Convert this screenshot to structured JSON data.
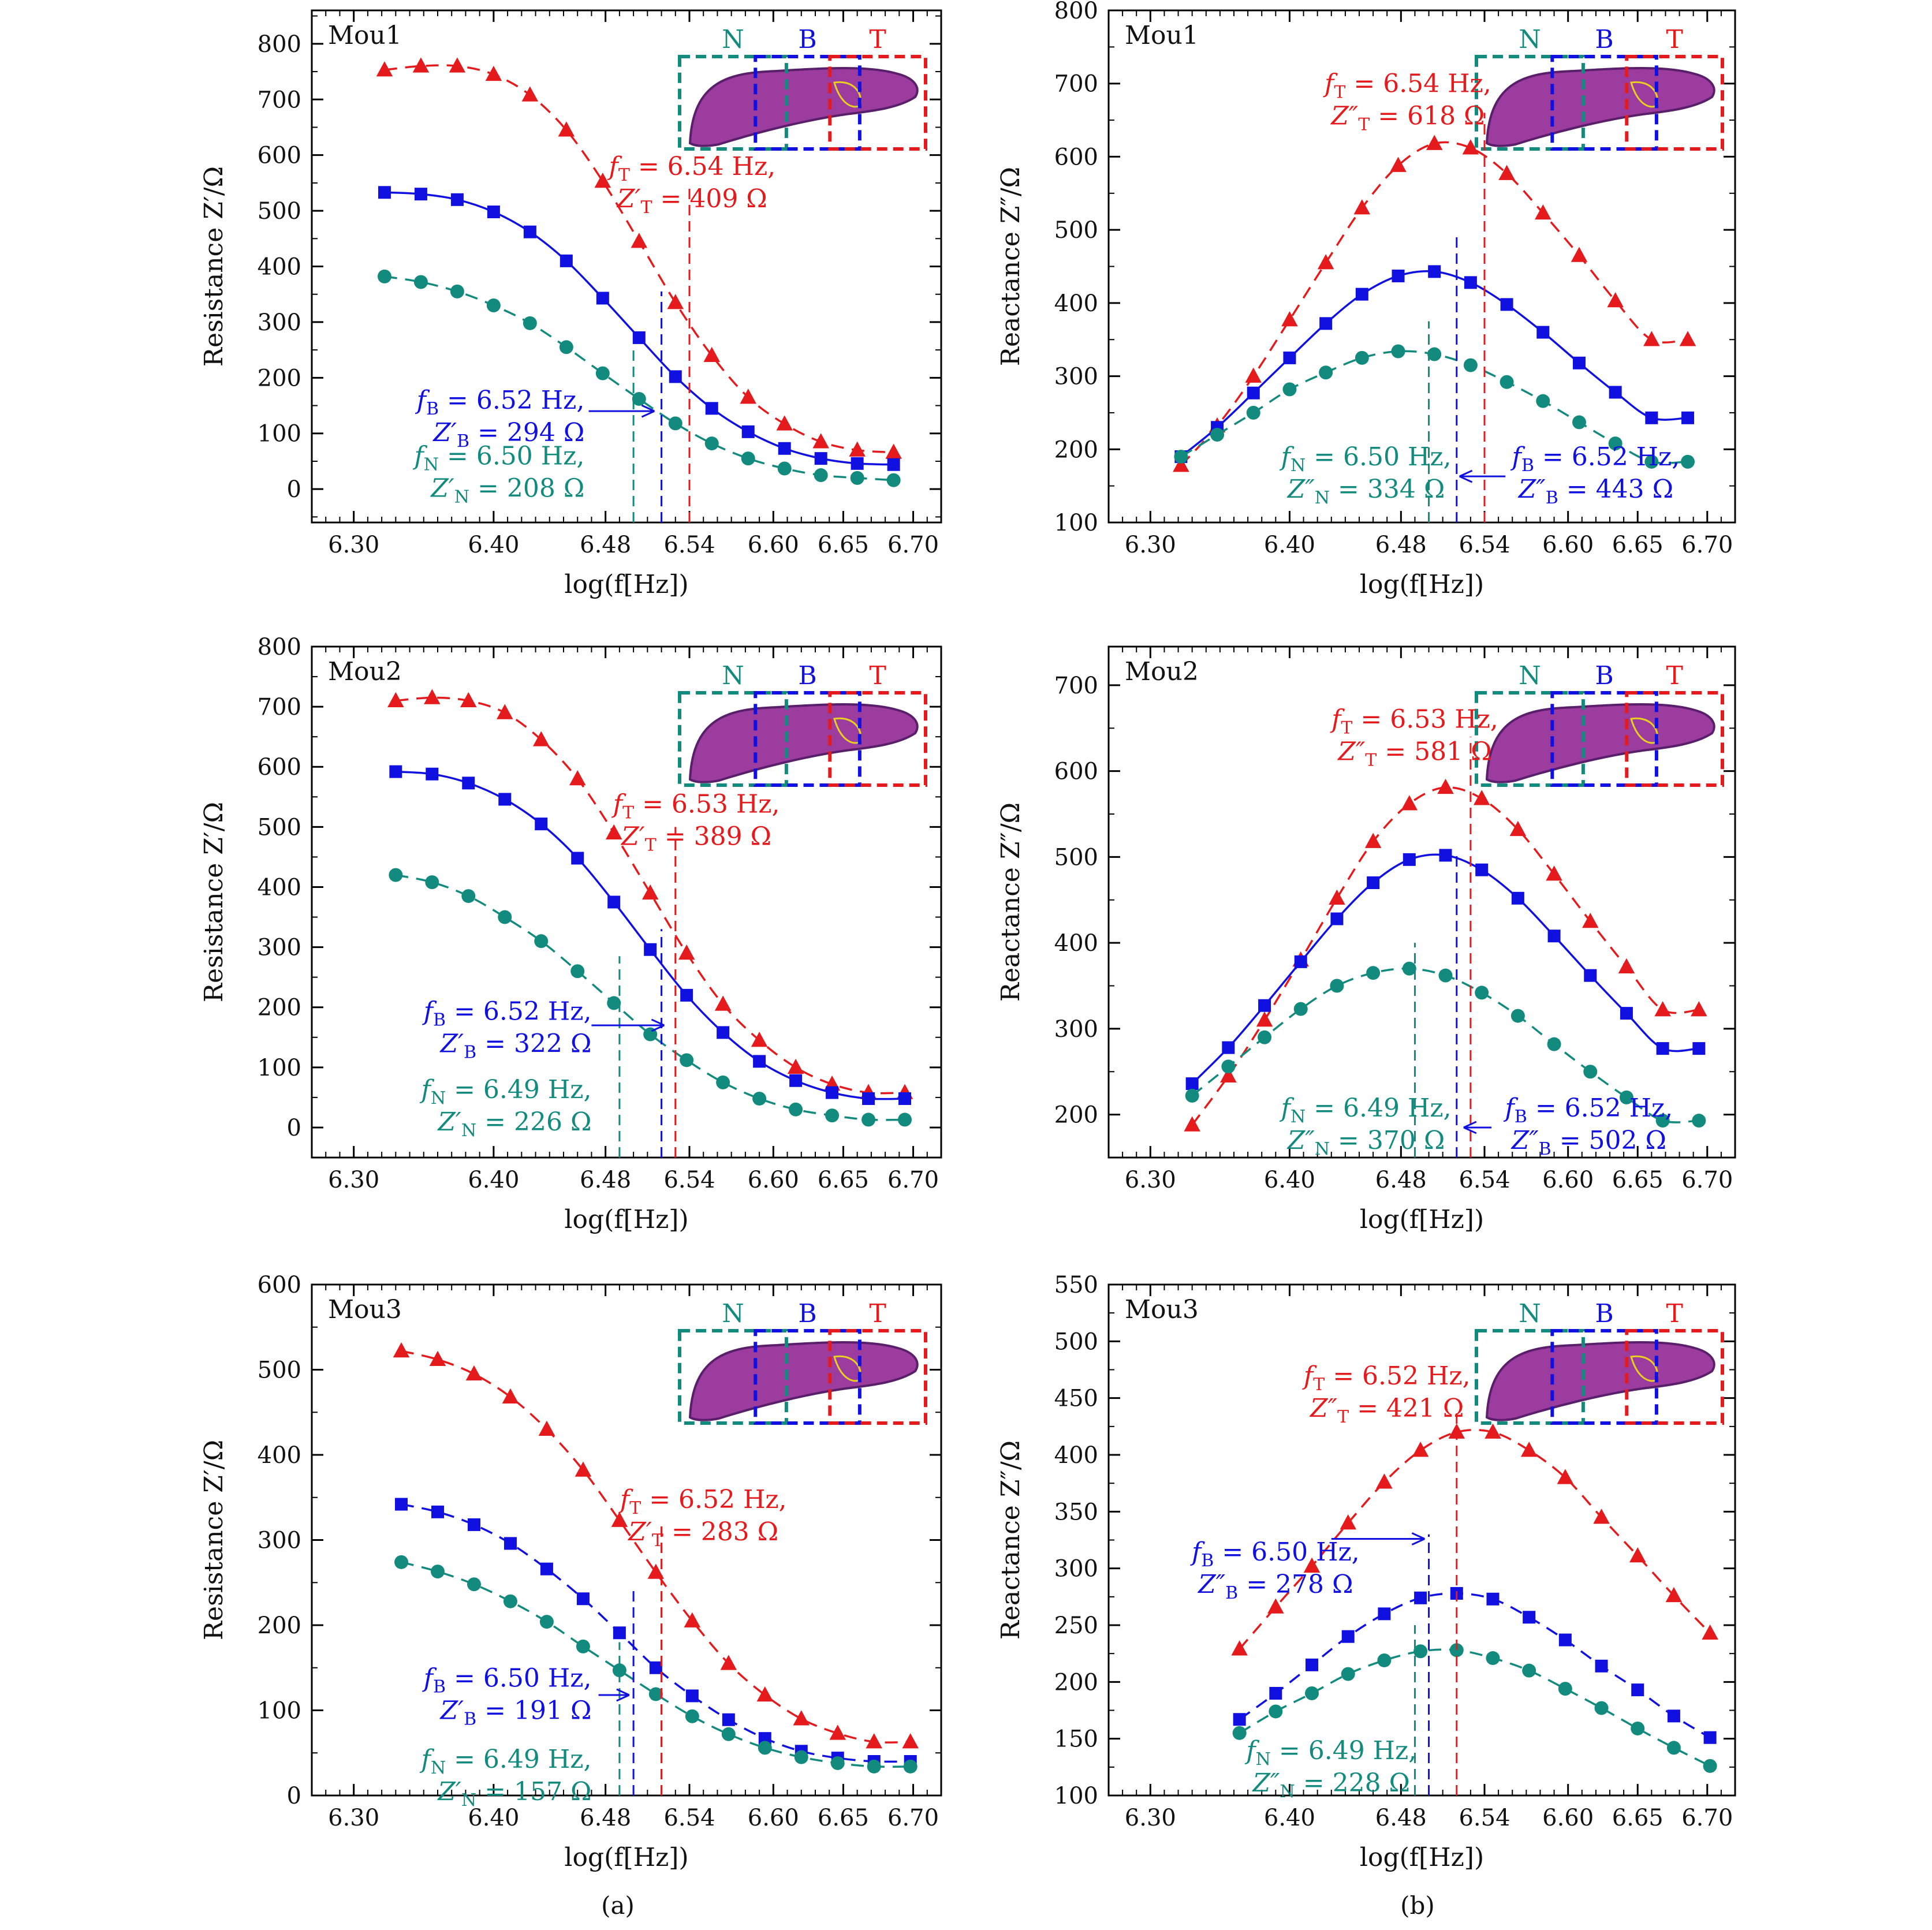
{
  "colors": {
    "T": "#e41a1c",
    "B": "#1010e0",
    "N": "#138a7e",
    "axis": "#000000"
  },
  "sub_captions": [
    "(a)",
    "(b)"
  ],
  "inset": {
    "letters": [
      "N",
      "B",
      "T"
    ],
    "tissue_color": "#9b3c9e",
    "tissue_edge": "#5a1f6a",
    "tumor_outline": "#e8d020"
  },
  "chart_data": [
    {
      "type": "line",
      "panel": "Mou1",
      "column": "a",
      "xlabel": "log(f[Hz])",
      "ylabel": "Resistance Z′/Ω",
      "xlim": [
        6.27,
        6.72
      ],
      "ylim": [
        -60,
        860
      ],
      "xticks": [
        "6.30",
        "6.40",
        "6.48",
        "6.54",
        "6.60",
        "6.65",
        "6.70"
      ],
      "xtick_values": [
        6.3,
        6.4,
        6.48,
        6.54,
        6.6,
        6.65,
        6.7
      ],
      "yticks": [
        0,
        100,
        200,
        300,
        400,
        500,
        600,
        700,
        800
      ],
      "x": [
        6.322,
        6.348,
        6.374,
        6.4,
        6.426,
        6.452,
        6.478,
        6.504,
        6.53,
        6.556,
        6.582,
        6.608,
        6.634,
        6.66,
        6.686
      ],
      "series": [
        {
          "key": "T",
          "marker": "triangle",
          "values": [
            753,
            760,
            760,
            745,
            708,
            645,
            553,
            445,
            335,
            240,
            165,
            117,
            85,
            70,
            66
          ]
        },
        {
          "key": "B",
          "marker": "square",
          "values": [
            533,
            530,
            520,
            498,
            462,
            410,
            343,
            272,
            202,
            145,
            103,
            73,
            55,
            46,
            44
          ]
        },
        {
          "key": "N",
          "marker": "circle",
          "values": [
            382,
            372,
            355,
            330,
            298,
            255,
            208,
            162,
            118,
            82,
            55,
            37,
            25,
            20,
            16
          ]
        }
      ],
      "vlines": [
        {
          "key": "T",
          "x": 6.54,
          "top": 545
        },
        {
          "key": "B",
          "x": 6.52,
          "top": 355
        },
        {
          "key": "N",
          "x": 6.5,
          "top": 258
        }
      ],
      "annotations": [
        {
          "key": "T",
          "f": "6.54 Hz,",
          "z": "409 Ω",
          "type": "prime",
          "x": 6.542,
          "y": 560,
          "anchor": "middle"
        },
        {
          "key": "B",
          "f": "6.52 Hz,",
          "z": "294 Ω",
          "type": "prime",
          "x": 6.465,
          "y": 140,
          "anchor": "end",
          "arrow": [
            6.468,
            140,
            6.515,
            140
          ]
        },
        {
          "key": "N",
          "f": "6.50 Hz,",
          "z": "208 Ω",
          "type": "prime",
          "x": 6.465,
          "y": 40,
          "anchor": "end"
        }
      ]
    },
    {
      "type": "line",
      "panel": "Mou1",
      "column": "b",
      "xlabel": "log(f[Hz])",
      "ylabel": "Reactance Z″/Ω",
      "xlim": [
        6.27,
        6.72
      ],
      "ylim": [
        100,
        800
      ],
      "xticks": [
        "6.30",
        "6.40",
        "6.48",
        "6.54",
        "6.60",
        "6.65",
        "6.70"
      ],
      "xtick_values": [
        6.3,
        6.4,
        6.48,
        6.54,
        6.6,
        6.65,
        6.7
      ],
      "yticks": [
        100,
        200,
        300,
        400,
        500,
        600,
        700,
        800
      ],
      "x": [
        6.322,
        6.348,
        6.374,
        6.4,
        6.426,
        6.452,
        6.478,
        6.504,
        6.53,
        6.556,
        6.582,
        6.608,
        6.634,
        6.66,
        6.686
      ],
      "series": [
        {
          "key": "T",
          "marker": "triangle",
          "values": [
            178,
            232,
            300,
            377,
            455,
            530,
            588,
            618,
            612,
            577,
            523,
            465,
            403,
            350,
            350
          ]
        },
        {
          "key": "B",
          "marker": "square",
          "values": [
            190,
            230,
            277,
            325,
            372,
            412,
            437,
            443,
            428,
            398,
            360,
            318,
            278,
            243,
            243
          ]
        },
        {
          "key": "N",
          "marker": "circle",
          "values": [
            190,
            220,
            250,
            282,
            305,
            325,
            334,
            330,
            315,
            292,
            266,
            237,
            208,
            183,
            183
          ]
        }
      ],
      "x_override": [
        6.322,
        6.348,
        6.374,
        6.4,
        6.426,
        6.452,
        6.478,
        6.504,
        6.53,
        6.556,
        6.582,
        6.608,
        6.634,
        6.66,
        6.686
      ],
      "vlines": [
        {
          "key": "T",
          "x": 6.54,
          "top": 660
        },
        {
          "key": "B",
          "x": 6.52,
          "top": 490
        },
        {
          "key": "N",
          "x": 6.5,
          "top": 375
        }
      ],
      "annotations": [
        {
          "key": "T",
          "f": "6.54 Hz,",
          "z": "618 Ω",
          "type": "dprime",
          "x": 6.485,
          "y": 685,
          "anchor": "middle"
        },
        {
          "key": "B",
          "f": "6.52 Hz,",
          "z": "443 Ω",
          "type": "dprime",
          "x": 6.62,
          "y": 175,
          "anchor": "middle",
          "arrow": [
            6.555,
            163,
            6.522,
            163
          ]
        },
        {
          "key": "N",
          "f": "6.50 Hz,",
          "z": "334 Ω",
          "type": "dprime",
          "x": 6.455,
          "y": 175,
          "anchor": "middle"
        }
      ]
    },
    {
      "type": "line",
      "panel": "Mou2",
      "column": "a",
      "xlabel": "log(f[Hz])",
      "ylabel": "Resistance Z′/Ω",
      "xlim": [
        6.27,
        6.72
      ],
      "ylim": [
        -50,
        800
      ],
      "xticks": [
        "6.30",
        "6.40",
        "6.48",
        "6.54",
        "6.60",
        "6.65",
        "6.70"
      ],
      "xtick_values": [
        6.3,
        6.4,
        6.48,
        6.54,
        6.6,
        6.65,
        6.7
      ],
      "yticks": [
        0,
        100,
        200,
        300,
        400,
        500,
        600,
        700,
        800
      ],
      "x": [
        6.33,
        6.356,
        6.382,
        6.408,
        6.434,
        6.46,
        6.486,
        6.512,
        6.538,
        6.564,
        6.59,
        6.616,
        6.642,
        6.668,
        6.694
      ],
      "series": [
        {
          "key": "T",
          "marker": "triangle",
          "values": [
            710,
            715,
            710,
            690,
            645,
            580,
            490,
            390,
            290,
            205,
            145,
            100,
            72,
            58,
            58
          ]
        },
        {
          "key": "B",
          "marker": "square",
          "values": [
            592,
            588,
            573,
            546,
            505,
            448,
            375,
            296,
            220,
            158,
            110,
            78,
            58,
            48,
            48
          ]
        },
        {
          "key": "N",
          "marker": "circle",
          "values": [
            420,
            408,
            385,
            350,
            310,
            260,
            207,
            155,
            112,
            75,
            48,
            30,
            20,
            13,
            13
          ]
        }
      ],
      "vlines": [
        {
          "key": "T",
          "x": 6.53,
          "top": 500
        },
        {
          "key": "B",
          "x": 6.52,
          "top": 330
        },
        {
          "key": "N",
          "x": 6.49,
          "top": 285
        }
      ],
      "annotations": [
        {
          "key": "T",
          "f": "6.53 Hz,",
          "z": "389 Ω",
          "type": "prime",
          "x": 6.545,
          "y": 520,
          "anchor": "middle"
        },
        {
          "key": "B",
          "f": "6.52 Hz,",
          "z": "322 Ω",
          "type": "prime",
          "x": 6.47,
          "y": 175,
          "anchor": "end",
          "arrow": [
            6.47,
            170,
            6.522,
            170
          ]
        },
        {
          "key": "N",
          "f": "6.49 Hz,",
          "z": "226 Ω",
          "type": "prime",
          "x": 6.47,
          "y": 45,
          "anchor": "end"
        }
      ]
    },
    {
      "type": "line",
      "panel": "Mou2",
      "column": "b",
      "xlabel": "log(f[Hz])",
      "ylabel": "Reactance Z″/Ω",
      "xlim": [
        6.27,
        6.72
      ],
      "ylim": [
        150,
        745
      ],
      "xticks": [
        "6.30",
        "6.40",
        "6.48",
        "6.54",
        "6.60",
        "6.65",
        "6.70"
      ],
      "xtick_values": [
        6.3,
        6.4,
        6.48,
        6.54,
        6.6,
        6.65,
        6.7
      ],
      "yticks": [
        200,
        300,
        400,
        500,
        600,
        700
      ],
      "x": [
        6.33,
        6.356,
        6.382,
        6.408,
        6.434,
        6.46,
        6.486,
        6.512,
        6.538,
        6.564,
        6.59,
        6.616,
        6.642,
        6.668,
        6.694
      ],
      "series": [
        {
          "key": "T",
          "marker": "triangle",
          "values": [
            188,
            245,
            310,
            380,
            452,
            518,
            562,
            581,
            568,
            532,
            480,
            425,
            372,
            322,
            322
          ]
        },
        {
          "key": "B",
          "marker": "square",
          "values": [
            236,
            278,
            327,
            378,
            428,
            470,
            497,
            502,
            485,
            452,
            408,
            362,
            318,
            277,
            277
          ]
        },
        {
          "key": "N",
          "marker": "circle",
          "values": [
            222,
            256,
            290,
            323,
            350,
            365,
            370,
            362,
            342,
            315,
            282,
            250,
            220,
            193,
            193
          ]
        }
      ],
      "vlines": [
        {
          "key": "T",
          "x": 6.53,
          "top": 640
        },
        {
          "key": "B",
          "x": 6.52,
          "top": 505
        },
        {
          "key": "N",
          "x": 6.49,
          "top": 400
        }
      ],
      "annotations": [
        {
          "key": "T",
          "f": "6.53 Hz,",
          "z": "581 Ω",
          "type": "dprime",
          "x": 6.49,
          "y": 648,
          "anchor": "middle"
        },
        {
          "key": "B",
          "f": "6.52 Hz,",
          "z": "502 Ω",
          "type": "dprime",
          "x": 6.615,
          "y": 195,
          "anchor": "middle",
          "arrow": [
            6.545,
            185,
            6.525,
            185
          ]
        },
        {
          "key": "N",
          "f": "6.49 Hz,",
          "z": "370 Ω",
          "type": "dprime",
          "x": 6.455,
          "y": 195,
          "anchor": "middle"
        }
      ]
    },
    {
      "type": "line",
      "panel": "Mou3",
      "column": "a",
      "xlabel": "log(f[Hz])",
      "ylabel": "Resistance Z′/Ω",
      "xlim": [
        6.27,
        6.72
      ],
      "ylim": [
        0,
        600
      ],
      "xticks": [
        "6.30",
        "6.40",
        "6.48",
        "6.54",
        "6.60",
        "6.65",
        "6.70"
      ],
      "xtick_values": [
        6.3,
        6.4,
        6.48,
        6.54,
        6.6,
        6.65,
        6.7
      ],
      "yticks": [
        0,
        100,
        200,
        300,
        400,
        500,
        600
      ],
      "x": [
        6.334,
        6.36,
        6.386,
        6.412,
        6.438,
        6.464,
        6.49,
        6.516,
        6.542,
        6.568,
        6.594,
        6.62,
        6.646,
        6.672,
        6.698
      ],
      "series": [
        {
          "key": "T",
          "marker": "triangle",
          "values": [
            522,
            512,
            495,
            468,
            430,
            382,
            323,
            262,
            205,
            155,
            118,
            90,
            73,
            63,
            63
          ]
        },
        {
          "key": "B",
          "marker": "square",
          "values": [
            342,
            333,
            318,
            296,
            266,
            231,
            191,
            150,
            117,
            89,
            67,
            52,
            44,
            40,
            40
          ]
        },
        {
          "key": "N",
          "marker": "circle",
          "values": [
            274,
            263,
            248,
            228,
            204,
            175,
            147,
            119,
            93,
            72,
            56,
            45,
            38,
            34,
            34
          ]
        }
      ],
      "vlines": [
        {
          "key": "T",
          "x": 6.52,
          "top": 320
        },
        {
          "key": "B",
          "x": 6.5,
          "top": 240
        },
        {
          "key": "N",
          "x": 6.49,
          "top": 180
        }
      ],
      "annotations": [
        {
          "key": "T",
          "f": "6.52 Hz,",
          "z": "283 Ω",
          "type": "prime",
          "x": 6.55,
          "y": 335,
          "anchor": "middle"
        },
        {
          "key": "B",
          "f": "6.50 Hz,",
          "z": "191 Ω",
          "type": "prime",
          "x": 6.47,
          "y": 125,
          "anchor": "end",
          "arrow": [
            6.475,
            118,
            6.497,
            118
          ]
        },
        {
          "key": "N",
          "f": "6.49 Hz,",
          "z": "157 Ω",
          "type": "prime",
          "x": 6.47,
          "y": 30,
          "anchor": "end"
        }
      ]
    },
    {
      "type": "line",
      "panel": "Mou3",
      "column": "b",
      "xlabel": "log(f[Hz])",
      "ylabel": "Reactance Z″/Ω",
      "xlim": [
        6.27,
        6.72
      ],
      "ylim": [
        100,
        550
      ],
      "xticks": [
        "6.30",
        "6.40",
        "6.48",
        "6.54",
        "6.60",
        "6.65",
        "6.70"
      ],
      "xtick_values": [
        6.3,
        6.4,
        6.48,
        6.54,
        6.6,
        6.65,
        6.7
      ],
      "yticks": [
        100,
        150,
        200,
        250,
        300,
        350,
        400,
        450,
        500,
        550
      ],
      "x": [
        6.364,
        6.39,
        6.416,
        6.442,
        6.468,
        6.494,
        6.52,
        6.546,
        6.572,
        6.598,
        6.624,
        6.65,
        6.676,
        6.702
      ],
      "series": [
        {
          "key": "T",
          "marker": "triangle",
          "values": [
            229,
            266,
            302,
            340,
            376,
            404,
            420,
            420,
            404,
            380,
            345,
            311,
            276,
            243
          ]
        },
        {
          "key": "B",
          "marker": "square",
          "values": [
            167,
            190,
            215,
            240,
            260,
            274,
            278,
            273,
            257,
            237,
            214,
            193,
            170,
            151
          ]
        },
        {
          "key": "N",
          "marker": "circle",
          "values": [
            155,
            174,
            190,
            207,
            219,
            227,
            228,
            221,
            210,
            194,
            177,
            159,
            142,
            126
          ]
        }
      ],
      "vlines": [
        {
          "key": "T",
          "x": 6.52,
          "top": 440
        },
        {
          "key": "B",
          "x": 6.5,
          "top": 330
        },
        {
          "key": "N",
          "x": 6.49,
          "top": 250
        }
      ],
      "annotations": [
        {
          "key": "T",
          "f": "6.52 Hz,",
          "z": "421 Ω",
          "type": "dprime",
          "x": 6.47,
          "y": 460,
          "anchor": "middle"
        },
        {
          "key": "B",
          "f": "6.50 Hz,",
          "z": "278 Ω",
          "type": "dprime",
          "x": 6.39,
          "y": 305,
          "anchor": "middle",
          "arrow": [
            6.43,
            326,
            6.497,
            326
          ]
        },
        {
          "key": "N",
          "f": "6.49 Hz,",
          "z": "228 Ω",
          "type": "dprime",
          "x": 6.43,
          "y": 130,
          "anchor": "middle"
        }
      ]
    }
  ]
}
